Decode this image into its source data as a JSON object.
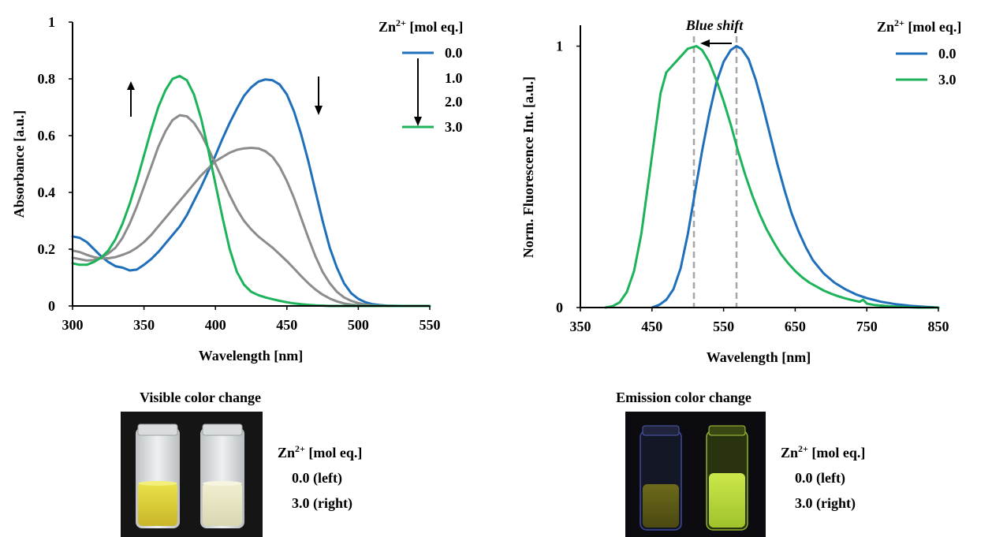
{
  "colors": {
    "blue": "#1f6fba",
    "green": "#1db35a",
    "gray": "#8c8c8c",
    "dashed": "#a6a6a6",
    "photo_bg": "#111111"
  },
  "chart_data": [
    {
      "type": "line",
      "xlabel": "Wavelength [nm]",
      "ylabel": "Absorbance [a.u.]",
      "xlim": [
        300,
        550
      ],
      "ylim": [
        0,
        1
      ],
      "x_ticks": [
        "300",
        "350",
        "400",
        "450",
        "500",
        "550"
      ],
      "y_ticks": [
        "0",
        "0.2",
        "0.4",
        "0.6",
        "0.8",
        "1"
      ],
      "legend": {
        "title_base": "Zn",
        "title_sup": "2+",
        "title_rest": " [mol eq.]",
        "entries": [
          "0.0",
          "1.0",
          "2.0",
          "3.0"
        ],
        "placement": "top-right"
      },
      "series": [
        {
          "name": "0.0",
          "color": "blue",
          "points": [
            [
              300,
              0.245
            ],
            [
              305,
              0.24
            ],
            [
              310,
              0.225
            ],
            [
              315,
              0.2
            ],
            [
              320,
              0.175
            ],
            [
              325,
              0.155
            ],
            [
              330,
              0.14
            ],
            [
              335,
              0.135
            ],
            [
              340,
              0.125
            ],
            [
              345,
              0.128
            ],
            [
              350,
              0.145
            ],
            [
              355,
              0.165
            ],
            [
              360,
              0.19
            ],
            [
              365,
              0.22
            ],
            [
              370,
              0.25
            ],
            [
              375,
              0.28
            ],
            [
              380,
              0.32
            ],
            [
              385,
              0.37
            ],
            [
              390,
              0.42
            ],
            [
              395,
              0.475
            ],
            [
              400,
              0.53
            ],
            [
              405,
              0.59
            ],
            [
              410,
              0.645
            ],
            [
              415,
              0.695
            ],
            [
              420,
              0.74
            ],
            [
              425,
              0.77
            ],
            [
              430,
              0.79
            ],
            [
              435,
              0.798
            ],
            [
              440,
              0.795
            ],
            [
              445,
              0.78
            ],
            [
              450,
              0.745
            ],
            [
              455,
              0.685
            ],
            [
              460,
              0.605
            ],
            [
              465,
              0.51
            ],
            [
              470,
              0.405
            ],
            [
              475,
              0.3
            ],
            [
              480,
              0.205
            ],
            [
              485,
              0.135
            ],
            [
              490,
              0.08
            ],
            [
              495,
              0.045
            ],
            [
              500,
              0.025
            ],
            [
              505,
              0.013
            ],
            [
              510,
              0.006
            ],
            [
              515,
              0.003
            ],
            [
              520,
              0.001
            ],
            [
              530,
              0.0
            ],
            [
              550,
              0.0
            ]
          ]
        },
        {
          "name": "1.0",
          "color": "gray",
          "points": [
            [
              300,
              0.195
            ],
            [
              305,
              0.19
            ],
            [
              310,
              0.18
            ],
            [
              315,
              0.172
            ],
            [
              320,
              0.168
            ],
            [
              325,
              0.168
            ],
            [
              330,
              0.172
            ],
            [
              335,
              0.18
            ],
            [
              340,
              0.19
            ],
            [
              345,
              0.205
            ],
            [
              350,
              0.225
            ],
            [
              355,
              0.25
            ],
            [
              360,
              0.28
            ],
            [
              365,
              0.31
            ],
            [
              370,
              0.34
            ],
            [
              375,
              0.37
            ],
            [
              380,
              0.4
            ],
            [
              385,
              0.43
            ],
            [
              390,
              0.46
            ],
            [
              395,
              0.485
            ],
            [
              400,
              0.51
            ],
            [
              405,
              0.525
            ],
            [
              410,
              0.54
            ],
            [
              415,
              0.55
            ],
            [
              420,
              0.555
            ],
            [
              425,
              0.557
            ],
            [
              430,
              0.555
            ],
            [
              435,
              0.545
            ],
            [
              440,
              0.525
            ],
            [
              445,
              0.49
            ],
            [
              450,
              0.44
            ],
            [
              455,
              0.38
            ],
            [
              460,
              0.31
            ],
            [
              465,
              0.24
            ],
            [
              470,
              0.175
            ],
            [
              475,
              0.12
            ],
            [
              480,
              0.08
            ],
            [
              485,
              0.05
            ],
            [
              490,
              0.03
            ],
            [
              495,
              0.018
            ],
            [
              500,
              0.01
            ],
            [
              505,
              0.005
            ],
            [
              510,
              0.002
            ],
            [
              520,
              0.0
            ],
            [
              550,
              0.0
            ]
          ]
        },
        {
          "name": "2.0",
          "color": "gray",
          "points": [
            [
              300,
              0.17
            ],
            [
              305,
              0.165
            ],
            [
              310,
              0.16
            ],
            [
              315,
              0.162
            ],
            [
              320,
              0.17
            ],
            [
              325,
              0.185
            ],
            [
              330,
              0.205
            ],
            [
              335,
              0.24
            ],
            [
              340,
              0.29
            ],
            [
              345,
              0.35
            ],
            [
              350,
              0.42
            ],
            [
              355,
              0.49
            ],
            [
              360,
              0.56
            ],
            [
              365,
              0.615
            ],
            [
              370,
              0.655
            ],
            [
              375,
              0.672
            ],
            [
              380,
              0.668
            ],
            [
              385,
              0.645
            ],
            [
              390,
              0.605
            ],
            [
              395,
              0.555
            ],
            [
              400,
              0.5
            ],
            [
              405,
              0.445
            ],
            [
              410,
              0.39
            ],
            [
              415,
              0.34
            ],
            [
              420,
              0.3
            ],
            [
              425,
              0.27
            ],
            [
              430,
              0.245
            ],
            [
              435,
              0.225
            ],
            [
              440,
              0.205
            ],
            [
              445,
              0.182
            ],
            [
              450,
              0.158
            ],
            [
              455,
              0.132
            ],
            [
              460,
              0.105
            ],
            [
              465,
              0.08
            ],
            [
              470,
              0.058
            ],
            [
              475,
              0.04
            ],
            [
              480,
              0.026
            ],
            [
              485,
              0.016
            ],
            [
              490,
              0.009
            ],
            [
              495,
              0.005
            ],
            [
              500,
              0.002
            ],
            [
              510,
              0.0
            ],
            [
              550,
              0.0
            ]
          ]
        },
        {
          "name": "3.0",
          "color": "green",
          "points": [
            [
              300,
              0.15
            ],
            [
              305,
              0.145
            ],
            [
              310,
              0.145
            ],
            [
              315,
              0.155
            ],
            [
              320,
              0.17
            ],
            [
              325,
              0.195
            ],
            [
              330,
              0.235
            ],
            [
              335,
              0.29
            ],
            [
              340,
              0.36
            ],
            [
              345,
              0.44
            ],
            [
              350,
              0.53
            ],
            [
              355,
              0.62
            ],
            [
              360,
              0.7
            ],
            [
              365,
              0.76
            ],
            [
              370,
              0.8
            ],
            [
              375,
              0.81
            ],
            [
              380,
              0.795
            ],
            [
              385,
              0.745
            ],
            [
              390,
              0.66
            ],
            [
              395,
              0.55
            ],
            [
              400,
              0.43
            ],
            [
              405,
              0.31
            ],
            [
              410,
              0.2
            ],
            [
              415,
              0.12
            ],
            [
              420,
              0.075
            ],
            [
              425,
              0.05
            ],
            [
              430,
              0.038
            ],
            [
              435,
              0.03
            ],
            [
              440,
              0.024
            ],
            [
              445,
              0.018
            ],
            [
              450,
              0.013
            ],
            [
              455,
              0.009
            ],
            [
              460,
              0.006
            ],
            [
              465,
              0.004
            ],
            [
              470,
              0.002
            ],
            [
              480,
              0.0
            ],
            [
              550,
              0.0
            ]
          ]
        }
      ]
    },
    {
      "type": "line",
      "xlabel": "Wavelength [nm]",
      "ylabel": "Norm. Fluorescence Int. [a.u.]",
      "xlim": [
        350,
        850
      ],
      "ylim": [
        0,
        1.08
      ],
      "x_ticks": [
        "350",
        "450",
        "550",
        "650",
        "750",
        "850"
      ],
      "y_ticks": [
        "0",
        "1"
      ],
      "annotation": "Blue shift",
      "dashed_lines_x": [
        512,
        568
      ],
      "legend": {
        "title_base": "Zn",
        "title_sup": "2+",
        "title_rest": " [mol eq.]",
        "entries": [
          "0.0",
          "3.0"
        ],
        "placement": "top-right"
      },
      "series": [
        {
          "name": "0.0",
          "color": "blue",
          "points": [
            [
              450,
              0.0
            ],
            [
              460,
              0.01
            ],
            [
              470,
              0.03
            ],
            [
              480,
              0.07
            ],
            [
              490,
              0.15
            ],
            [
              500,
              0.28
            ],
            [
              510,
              0.44
            ],
            [
              520,
              0.6
            ],
            [
              530,
              0.74
            ],
            [
              540,
              0.86
            ],
            [
              550,
              0.94
            ],
            [
              560,
              0.985
            ],
            [
              568,
              1.0
            ],
            [
              575,
              0.99
            ],
            [
              585,
              0.95
            ],
            [
              595,
              0.87
            ],
            [
              605,
              0.77
            ],
            [
              615,
              0.66
            ],
            [
              625,
              0.55
            ],
            [
              635,
              0.45
            ],
            [
              645,
              0.36
            ],
            [
              655,
              0.29
            ],
            [
              665,
              0.23
            ],
            [
              675,
              0.18
            ],
            [
              690,
              0.13
            ],
            [
              705,
              0.095
            ],
            [
              720,
              0.07
            ],
            [
              735,
              0.05
            ],
            [
              750,
              0.036
            ],
            [
              770,
              0.022
            ],
            [
              790,
              0.013
            ],
            [
              810,
              0.007
            ],
            [
              830,
              0.003
            ],
            [
              850,
              0.0
            ]
          ]
        },
        {
          "name": "3.0",
          "color": "green",
          "points": [
            [
              385,
              0.0
            ],
            [
              395,
              0.005
            ],
            [
              405,
              0.02
            ],
            [
              415,
              0.06
            ],
            [
              425,
              0.14
            ],
            [
              435,
              0.28
            ],
            [
              445,
              0.48
            ],
            [
              455,
              0.68
            ],
            [
              462,
              0.82
            ],
            [
              470,
              0.9
            ],
            [
              480,
              0.93
            ],
            [
              490,
              0.96
            ],
            [
              500,
              0.99
            ],
            [
              512,
              1.0
            ],
            [
              520,
              0.985
            ],
            [
              530,
              0.94
            ],
            [
              540,
              0.87
            ],
            [
              550,
              0.79
            ],
            [
              560,
              0.7
            ],
            [
              570,
              0.6
            ],
            [
              580,
              0.51
            ],
            [
              590,
              0.43
            ],
            [
              600,
              0.36
            ],
            [
              610,
              0.3
            ],
            [
              620,
              0.25
            ],
            [
              630,
              0.205
            ],
            [
              640,
              0.17
            ],
            [
              650,
              0.14
            ],
            [
              660,
              0.115
            ],
            [
              670,
              0.095
            ],
            [
              680,
              0.08
            ],
            [
              690,
              0.065
            ],
            [
              700,
              0.053
            ],
            [
              710,
              0.043
            ],
            [
              720,
              0.035
            ],
            [
              730,
              0.028
            ],
            [
              740,
              0.022
            ],
            [
              745,
              0.03
            ],
            [
              750,
              0.015
            ],
            [
              760,
              0.01
            ],
            [
              780,
              0.005
            ],
            [
              800,
              0.002
            ],
            [
              820,
              0.0
            ],
            [
              850,
              0.0
            ]
          ]
        }
      ]
    }
  ],
  "photos": [
    {
      "title": "Visible color change",
      "legend_base": "Zn",
      "legend_sup": "2+",
      "legend_rest": " [mol eq.]",
      "lines": [
        "0.0 (left)",
        "3.0 (right)"
      ]
    },
    {
      "title": "Emission color change",
      "legend_base": "Zn",
      "legend_sup": "2+",
      "legend_rest": " [mol eq.]",
      "lines": [
        "0.0 (left)",
        "3.0 (right)"
      ]
    }
  ]
}
